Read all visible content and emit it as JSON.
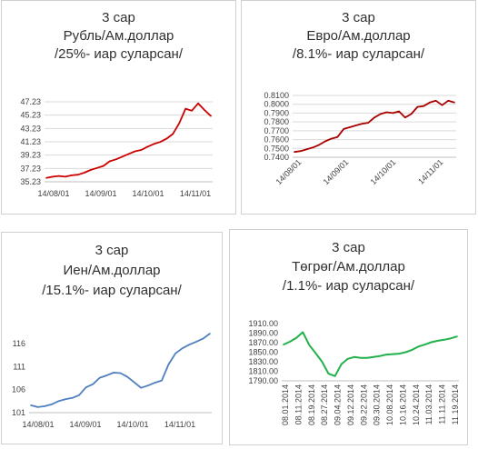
{
  "chart_data": [
    {
      "type": "line",
      "title_lines": [
        "3 сар",
        "Рубль/Ам.доллар",
        "/25%- иар суларсан/"
      ],
      "color": "#cc0000",
      "ylim": [
        35.23,
        47.23
      ],
      "yticks": [
        "47.23",
        "45.23",
        "43.23",
        "41.23",
        "39.23",
        "37.23",
        "35.23"
      ],
      "xticks": [
        "14/08/01",
        "14/09/01",
        "14/10/01",
        "14/11/01"
      ],
      "x": [
        "14/08/01",
        "14/08/05",
        "14/08/10",
        "14/08/15",
        "14/08/20",
        "14/08/25",
        "14/08/30",
        "14/09/01",
        "14/09/05",
        "14/09/10",
        "14/09/15",
        "14/09/20",
        "14/09/25",
        "14/09/30",
        "14/10/01",
        "14/10/05",
        "14/10/10",
        "14/10/15",
        "14/10/20",
        "14/10/25",
        "14/10/30",
        "14/11/01",
        "14/11/05",
        "14/11/10",
        "14/11/15",
        "14/11/20",
        "14/11/25"
      ],
      "values": [
        35.8,
        36.0,
        36.1,
        36.0,
        36.2,
        36.3,
        36.6,
        37.0,
        37.3,
        37.6,
        38.3,
        38.6,
        39.0,
        39.4,
        39.8,
        40.0,
        40.5,
        40.9,
        41.2,
        41.7,
        42.4,
        44.0,
        46.2,
        45.9,
        47.0,
        46.0,
        45.1
      ]
    },
    {
      "type": "line",
      "title_lines": [
        "3 сар",
        "Евро/Ам.доллар",
        "/8.1%- иар суларсан/"
      ],
      "color": "#a80000",
      "ylim": [
        0.74,
        0.81
      ],
      "yticks": [
        "0.8100",
        "0.8000",
        "0.7900",
        "0.7800",
        "0.7700",
        "0.7600",
        "0.7500",
        "0.7400"
      ],
      "xticks": [
        "14/08/01",
        "14/09/01",
        "14/10/01",
        "14/11/01"
      ],
      "x": [
        "14/08/01",
        "14/08/05",
        "14/08/10",
        "14/08/15",
        "14/08/20",
        "14/08/25",
        "14/08/30",
        "14/09/01",
        "14/09/05",
        "14/09/10",
        "14/09/15",
        "14/09/20",
        "14/09/25",
        "14/09/30",
        "14/10/01",
        "14/10/05",
        "14/10/10",
        "14/10/15",
        "14/10/20",
        "14/10/25",
        "14/10/30",
        "14/11/01",
        "14/11/05",
        "14/11/10",
        "14/11/15",
        "14/11/20",
        "14/11/25"
      ],
      "values": [
        0.746,
        0.747,
        0.749,
        0.751,
        0.754,
        0.758,
        0.761,
        0.763,
        0.772,
        0.774,
        0.776,
        0.778,
        0.779,
        0.785,
        0.789,
        0.791,
        0.79,
        0.792,
        0.785,
        0.789,
        0.797,
        0.798,
        0.802,
        0.804,
        0.799,
        0.804,
        0.802
      ]
    },
    {
      "type": "line",
      "title_lines": [
        "3 сар",
        "Иен/Ам.доллар",
        "/15.1%- иар суларсан/"
      ],
      "color": "#4f7fbf",
      "ylim": [
        101,
        119
      ],
      "yticks": [
        "116",
        "111",
        "106",
        "101"
      ],
      "xticks": [
        "14/08/01",
        "14/09/01",
        "14/10/01",
        "14/11/01"
      ],
      "x": [
        "14/08/01",
        "14/08/05",
        "14/08/10",
        "14/08/15",
        "14/08/20",
        "14/08/25",
        "14/08/30",
        "14/09/01",
        "14/09/05",
        "14/09/10",
        "14/09/15",
        "14/09/20",
        "14/09/25",
        "14/09/30",
        "14/10/01",
        "14/10/05",
        "14/10/10",
        "14/10/15",
        "14/10/20",
        "14/10/25",
        "14/10/30",
        "14/11/01",
        "14/11/05",
        "14/11/10",
        "14/11/15",
        "14/11/20",
        "14/11/25"
      ],
      "values": [
        102.6,
        102.2,
        102.4,
        102.8,
        103.5,
        103.9,
        104.2,
        104.8,
        106.5,
        107.2,
        108.6,
        109.1,
        109.7,
        109.6,
        108.8,
        107.6,
        106.4,
        106.9,
        107.5,
        108.0,
        111.5,
        113.9,
        115.0,
        115.8,
        116.4,
        117.1,
        118.2
      ]
    },
    {
      "type": "line",
      "title_lines": [
        "3 сар",
        "Төгрөг/Ам.доллар",
        "/1.1%- иар суларсан/"
      ],
      "color": "#22b14c",
      "ylim": [
        1790,
        1910
      ],
      "yticks": [
        "1910.00",
        "1890.00",
        "1870.00",
        "1850.00",
        "1830.00",
        "1810.00",
        "1790.00"
      ],
      "xticks": [
        "08.01.2014",
        "08.11.2014",
        "08.19.2014",
        "08.27.2014",
        "09.04.2014",
        "09.12.2014",
        "09.22.2014",
        "09.30.2014",
        "10.08.2014",
        "10.16.2014",
        "10.24.2014",
        "11.03.2014",
        "11.11.2014",
        "11.19.2014"
      ],
      "values": [
        1866,
        1872,
        1880,
        1892,
        1865,
        1848,
        1830,
        1805,
        1800,
        1825,
        1836,
        1840,
        1838,
        1838,
        1840,
        1842,
        1845,
        1846,
        1847,
        1850,
        1855,
        1862,
        1866,
        1871,
        1874,
        1876,
        1879,
        1883
      ]
    }
  ]
}
